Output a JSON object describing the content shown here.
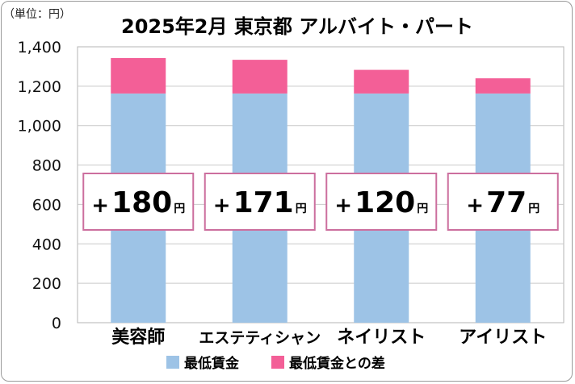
{
  "chart_data": {
    "type": "bar",
    "stacked": true,
    "title": "2025年2月 東京都 アルバイト・パート",
    "unit_note": "（単位：円）",
    "categories": [
      "美容師",
      "エステティシャン",
      "ネイリスト",
      "アイリスト"
    ],
    "series": [
      {
        "name": "最低賃金",
        "color": "#9dc3e6",
        "values": [
          1163,
          1163,
          1163,
          1163
        ]
      },
      {
        "name": "最低賃金との差",
        "color": "#f35f97",
        "values": [
          180,
          171,
          120,
          77
        ]
      }
    ],
    "labels": [
      {
        "sign": "+",
        "value": "180",
        "unit": "円"
      },
      {
        "sign": "+",
        "value": "171",
        "unit": "円"
      },
      {
        "sign": "+",
        "value": "120",
        "unit": "円"
      },
      {
        "sign": "+",
        "value": "77",
        "unit": "円"
      }
    ],
    "yticks": [
      "0",
      "200",
      "400",
      "600",
      "800",
      "1,000",
      "1,200",
      "1,400"
    ],
    "ylim": [
      0,
      1400
    ],
    "grid": true,
    "legend_position": "bottom"
  }
}
